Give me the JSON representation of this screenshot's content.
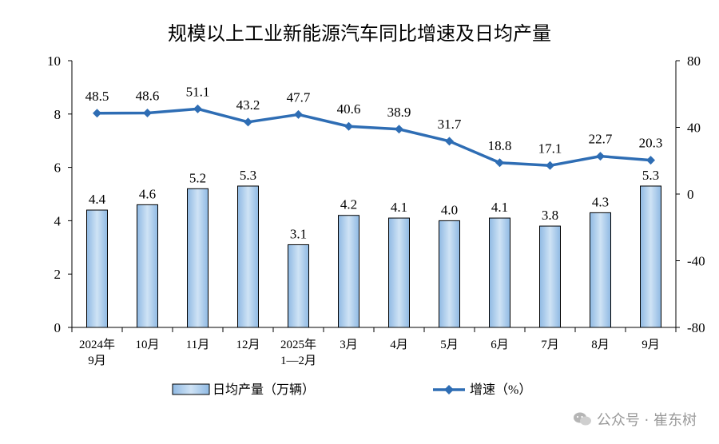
{
  "chart_data": {
    "type": "bar-line-combo",
    "title": "规模以上工业新能源汽车同比增速及日均产量",
    "categories": [
      {
        "line1": "2024年",
        "line2": "9月"
      },
      {
        "line1": "10月",
        "line2": ""
      },
      {
        "line1": "11月",
        "line2": ""
      },
      {
        "line1": "12月",
        "line2": ""
      },
      {
        "line1": "2025年",
        "line2": "1—2月"
      },
      {
        "line1": "3月",
        "line2": ""
      },
      {
        "line1": "4月",
        "line2": ""
      },
      {
        "line1": "5月",
        "line2": ""
      },
      {
        "line1": "6月",
        "line2": ""
      },
      {
        "line1": "7月",
        "line2": ""
      },
      {
        "line1": "8月",
        "line2": ""
      },
      {
        "line1": "9月",
        "line2": ""
      }
    ],
    "series": [
      {
        "name": "日均产量（万辆）",
        "type": "bar",
        "axis": "left",
        "values": [
          4.4,
          4.6,
          5.2,
          5.3,
          3.1,
          4.2,
          4.1,
          4.0,
          4.1,
          3.8,
          4.3,
          5.3
        ],
        "labels": [
          "4.4",
          "4.6",
          "5.2",
          "5.3",
          "3.1",
          "4.2",
          "4.1",
          "4.0",
          "4.1",
          "3.8",
          "4.3",
          "5.3"
        ]
      },
      {
        "name": "增速（%）",
        "type": "line",
        "axis": "right",
        "values": [
          48.5,
          48.6,
          51.1,
          43.2,
          47.7,
          40.6,
          38.9,
          31.7,
          18.8,
          17.1,
          22.7,
          20.3
        ],
        "labels": [
          "48.5",
          "48.6",
          "51.1",
          "43.2",
          "47.7",
          "40.6",
          "38.9",
          "31.7",
          "18.8",
          "17.1",
          "22.7",
          "20.3"
        ]
      }
    ],
    "left_axis": {
      "min": 0,
      "max": 10,
      "ticks": [
        "0",
        "2",
        "4",
        "6",
        "8",
        "10"
      ]
    },
    "right_axis": {
      "min": -80,
      "max": 80,
      "ticks": [
        "-80",
        "-40",
        "0",
        "40",
        "80"
      ]
    },
    "grid": false,
    "legend_position": "bottom",
    "colors": {
      "bar_fill": "#9dc3e6",
      "bar_fill_light": "#cfe3f5",
      "bar_stroke": "#000000",
      "line": "#2e6db4"
    }
  },
  "watermark": "公众号 · 崔东树"
}
